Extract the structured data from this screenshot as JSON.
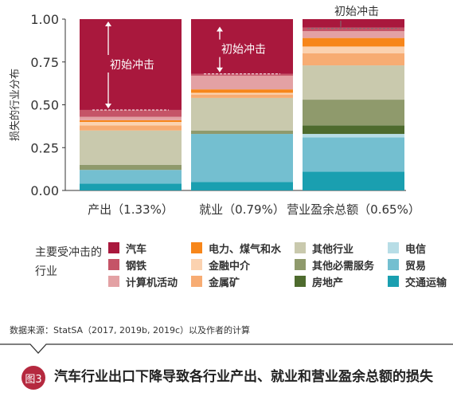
{
  "chart_data": {
    "type": "bar",
    "stacked": true,
    "ylabel": "损失的行业分布",
    "ylim": [
      0,
      1
    ],
    "yticks": [
      "0.00",
      "0.25",
      "0.50",
      "0.75",
      "1.00"
    ],
    "categories": [
      "产出（1.33%）",
      "就业（0.79%）",
      "营业盈余总额（0.65%）"
    ],
    "series": [
      {
        "name": "交通运输",
        "color": "#1a9fb0",
        "values": [
          0.04,
          0.05,
          0.11
        ]
      },
      {
        "name": "贸易",
        "color": "#74bfd0",
        "values": [
          0.08,
          0.28,
          0.2
        ]
      },
      {
        "name": "电信",
        "color": "#b7dde6",
        "values": [
          0.0,
          0.0,
          0.02
        ]
      },
      {
        "name": "房地产",
        "color": "#4e6b2e",
        "values": [
          0.0,
          0.0,
          0.05
        ]
      },
      {
        "name": "其他必需服务",
        "color": "#8f9a6c",
        "values": [
          0.03,
          0.02,
          0.15
        ]
      },
      {
        "name": "其他行业",
        "color": "#c9c9ad",
        "values": [
          0.2,
          0.19,
          0.2
        ]
      },
      {
        "name": "金属矿",
        "color": "#f7ac73",
        "values": [
          0.03,
          0.02,
          0.07
        ]
      },
      {
        "name": "金融中介",
        "color": "#fbd2b0",
        "values": [
          0.02,
          0.01,
          0.04
        ]
      },
      {
        "name": "电力、煤气和水",
        "color": "#f7861a",
        "values": [
          0.01,
          0.02,
          0.05
        ]
      },
      {
        "name": "计算机活动",
        "color": "#e3a1a4",
        "values": [
          0.02,
          0.08,
          0.04
        ]
      },
      {
        "name": "钢铁",
        "color": "#c55467",
        "values": [
          0.04,
          0.01,
          0.02
        ]
      },
      {
        "name": "汽车",
        "color": "#a9183d",
        "values": [
          0.53,
          0.32,
          0.05
        ]
      }
    ],
    "annotations": [
      {
        "text": "初始冲击",
        "category": 0,
        "from": 0.47,
        "to": 1.0
      },
      {
        "text": "初始冲击",
        "category": 1,
        "from": 0.68,
        "to": 0.97
      },
      {
        "text": "初始冲击",
        "category": 2,
        "from": 0.95,
        "to": 1.0
      }
    ],
    "legend_title": "主要受冲击的行业",
    "legend": [
      {
        "label": "汽车",
        "color": "#a9183d"
      },
      {
        "label": "钢铁",
        "color": "#c55467"
      },
      {
        "label": "计算机活动",
        "color": "#e3a1a4"
      },
      {
        "label": "电力、煤气和水",
        "color": "#f7861a"
      },
      {
        "label": "金融中介",
        "color": "#fbd2b0"
      },
      {
        "label": "金属矿",
        "color": "#f7ac73"
      },
      {
        "label": "其他行业",
        "color": "#c9c9ad"
      },
      {
        "label": "其他必需服务",
        "color": "#8f9a6c"
      },
      {
        "label": "房地产",
        "color": "#4e6b2e"
      },
      {
        "label": "电信",
        "color": "#b7dde6"
      },
      {
        "label": "贸易",
        "color": "#74bfd0"
      },
      {
        "label": "交通运输",
        "color": "#1a9fb0"
      }
    ]
  },
  "source": "数据来源：StatSA（2017, 2019b, 2019c）以及作者的计算",
  "figure": {
    "badge": "图3",
    "title": "汽车行业出口下降导致各行业产出、就业和营业盈余总额的损失"
  }
}
